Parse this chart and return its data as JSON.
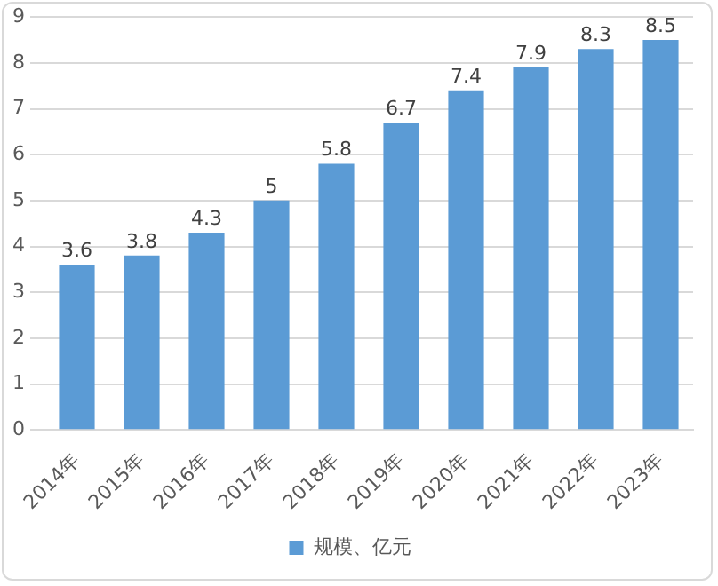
{
  "chart_data": {
    "type": "bar",
    "categories": [
      "2014年",
      "2015年",
      "2016年",
      "2017年",
      "2018年",
      "2019年",
      "2020年",
      "2021年",
      "2022年",
      "2023年"
    ],
    "series": [
      {
        "name": "规模、亿元",
        "color": "#5b9bd5",
        "values": [
          3.6,
          3.8,
          4.3,
          5,
          5.8,
          6.7,
          7.4,
          7.9,
          8.3,
          8.5
        ]
      }
    ],
    "ylim": [
      0,
      9
    ],
    "yticks": [
      0,
      1,
      2,
      3,
      4,
      5,
      6,
      7,
      8,
      9
    ],
    "grid": "y",
    "legend": "bottom",
    "data_labels": true
  }
}
